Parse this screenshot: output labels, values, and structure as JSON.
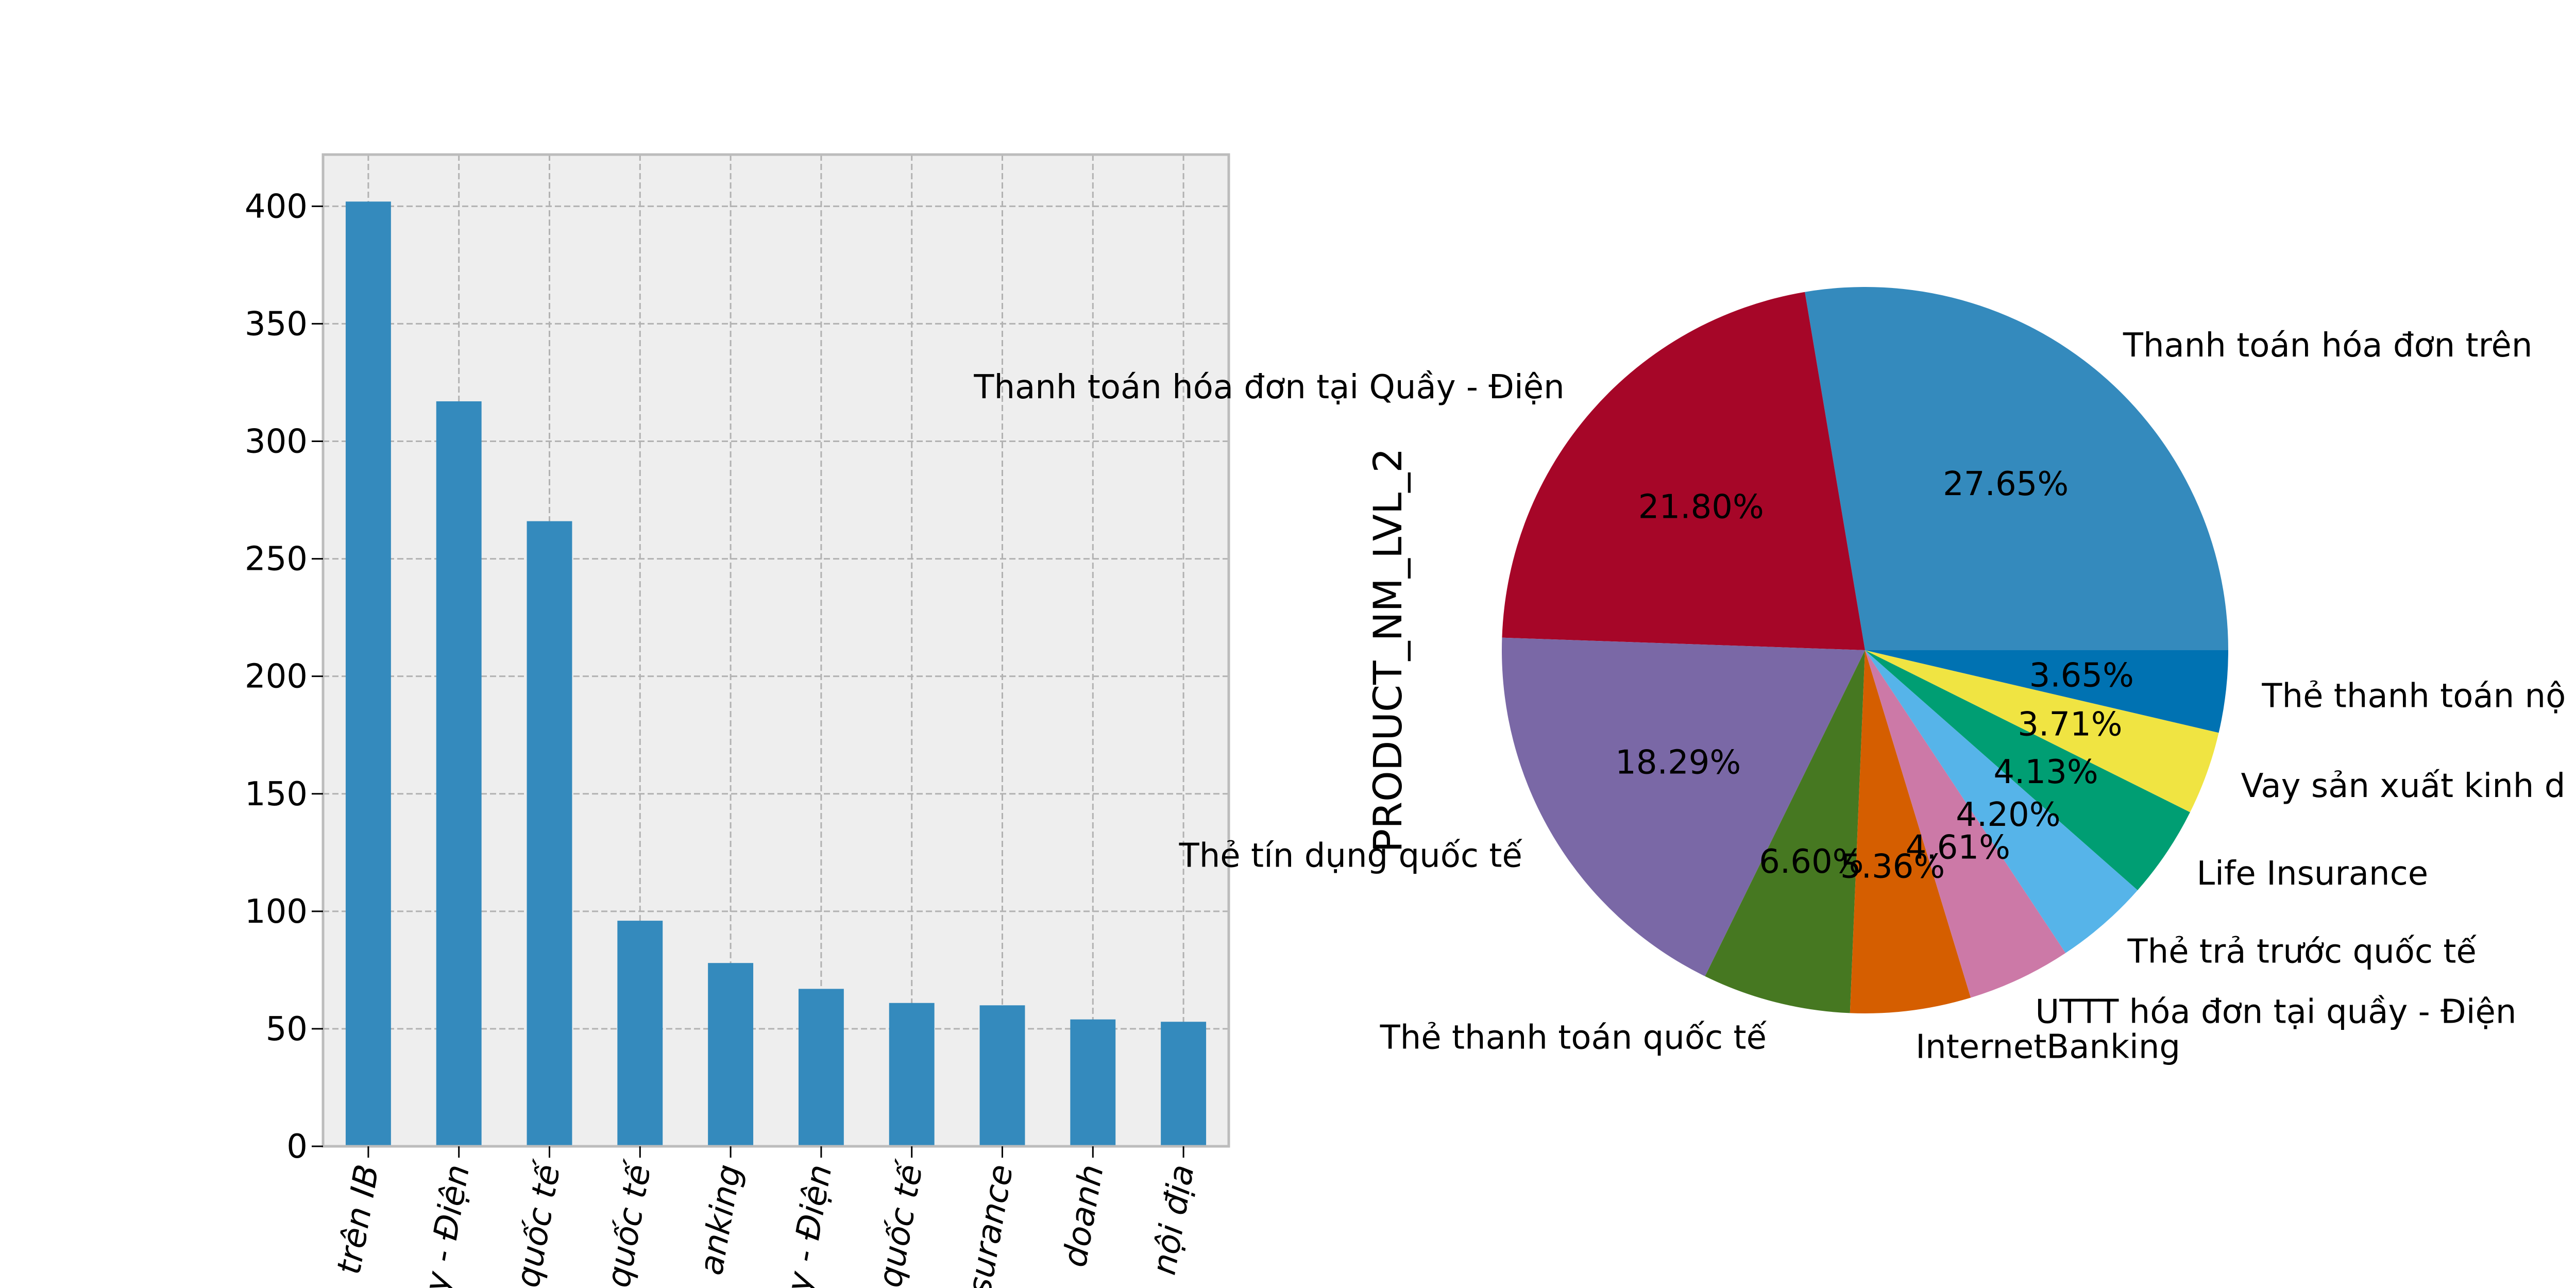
{
  "chart_data": [
    {
      "type": "bar",
      "ylim": [
        0,
        422
      ],
      "yticks": [
        0,
        50,
        100,
        150,
        200,
        250,
        300,
        350,
        400
      ],
      "categories": [
        "trên IB",
        "y - Điện",
        "quốc tế",
        "quốc tế",
        "anking",
        "y - Điện",
        "quốc tế",
        "surance",
        "doanh",
        "nội địa"
      ],
      "values": [
        402,
        317,
        266,
        96,
        78,
        67,
        61,
        60,
        54,
        53
      ],
      "grid": true,
      "colors": {
        "bar": "#348abd",
        "axes_bg": "#eeeeee",
        "grid": "#b2b2b2",
        "frame": "#bcbcbc"
      }
    },
    {
      "type": "pie",
      "ylabel": "PRODUCT_NM_LVL_2",
      "slices": [
        {
          "label": "Thanh toán hóa đơn trên",
          "pct_label": "27.65%",
          "value": 27.65,
          "color": "#348abd"
        },
        {
          "label": "Thanh toán hóa đơn tại Quầy - Điện",
          "pct_label": "21.80%",
          "value": 21.8,
          "color": "#a60628"
        },
        {
          "label": "Thẻ tín dụng quốc tế",
          "pct_label": "18.29%",
          "value": 18.29,
          "color": "#7a68a6"
        },
        {
          "label": "Thẻ thanh toán quốc tế",
          "pct_label": "6.60%",
          "value": 6.6,
          "color": "#467821"
        },
        {
          "label": "InternetBanking",
          "pct_label": "5.36%",
          "value": 5.36,
          "color": "#d55e00"
        },
        {
          "label": "UTTT hóa đơn tại quầy - Điện",
          "pct_label": "4.61%",
          "value": 4.61,
          "color": "#cc79a7"
        },
        {
          "label": "Thẻ trả trước quốc tế",
          "pct_label": "4.20%",
          "value": 4.2,
          "color": "#56b4e9"
        },
        {
          "label": "Life Insurance",
          "pct_label": "4.13%",
          "value": 4.13,
          "color": "#009e73"
        },
        {
          "label": "Vay sản xuất kinh d",
          "pct_label": "3.71%",
          "value": 3.71,
          "color": "#f0e442"
        },
        {
          "label": "Thẻ thanh toán nộ",
          "pct_label": "3.65%",
          "value": 3.65,
          "color": "#0072b2"
        }
      ]
    }
  ]
}
